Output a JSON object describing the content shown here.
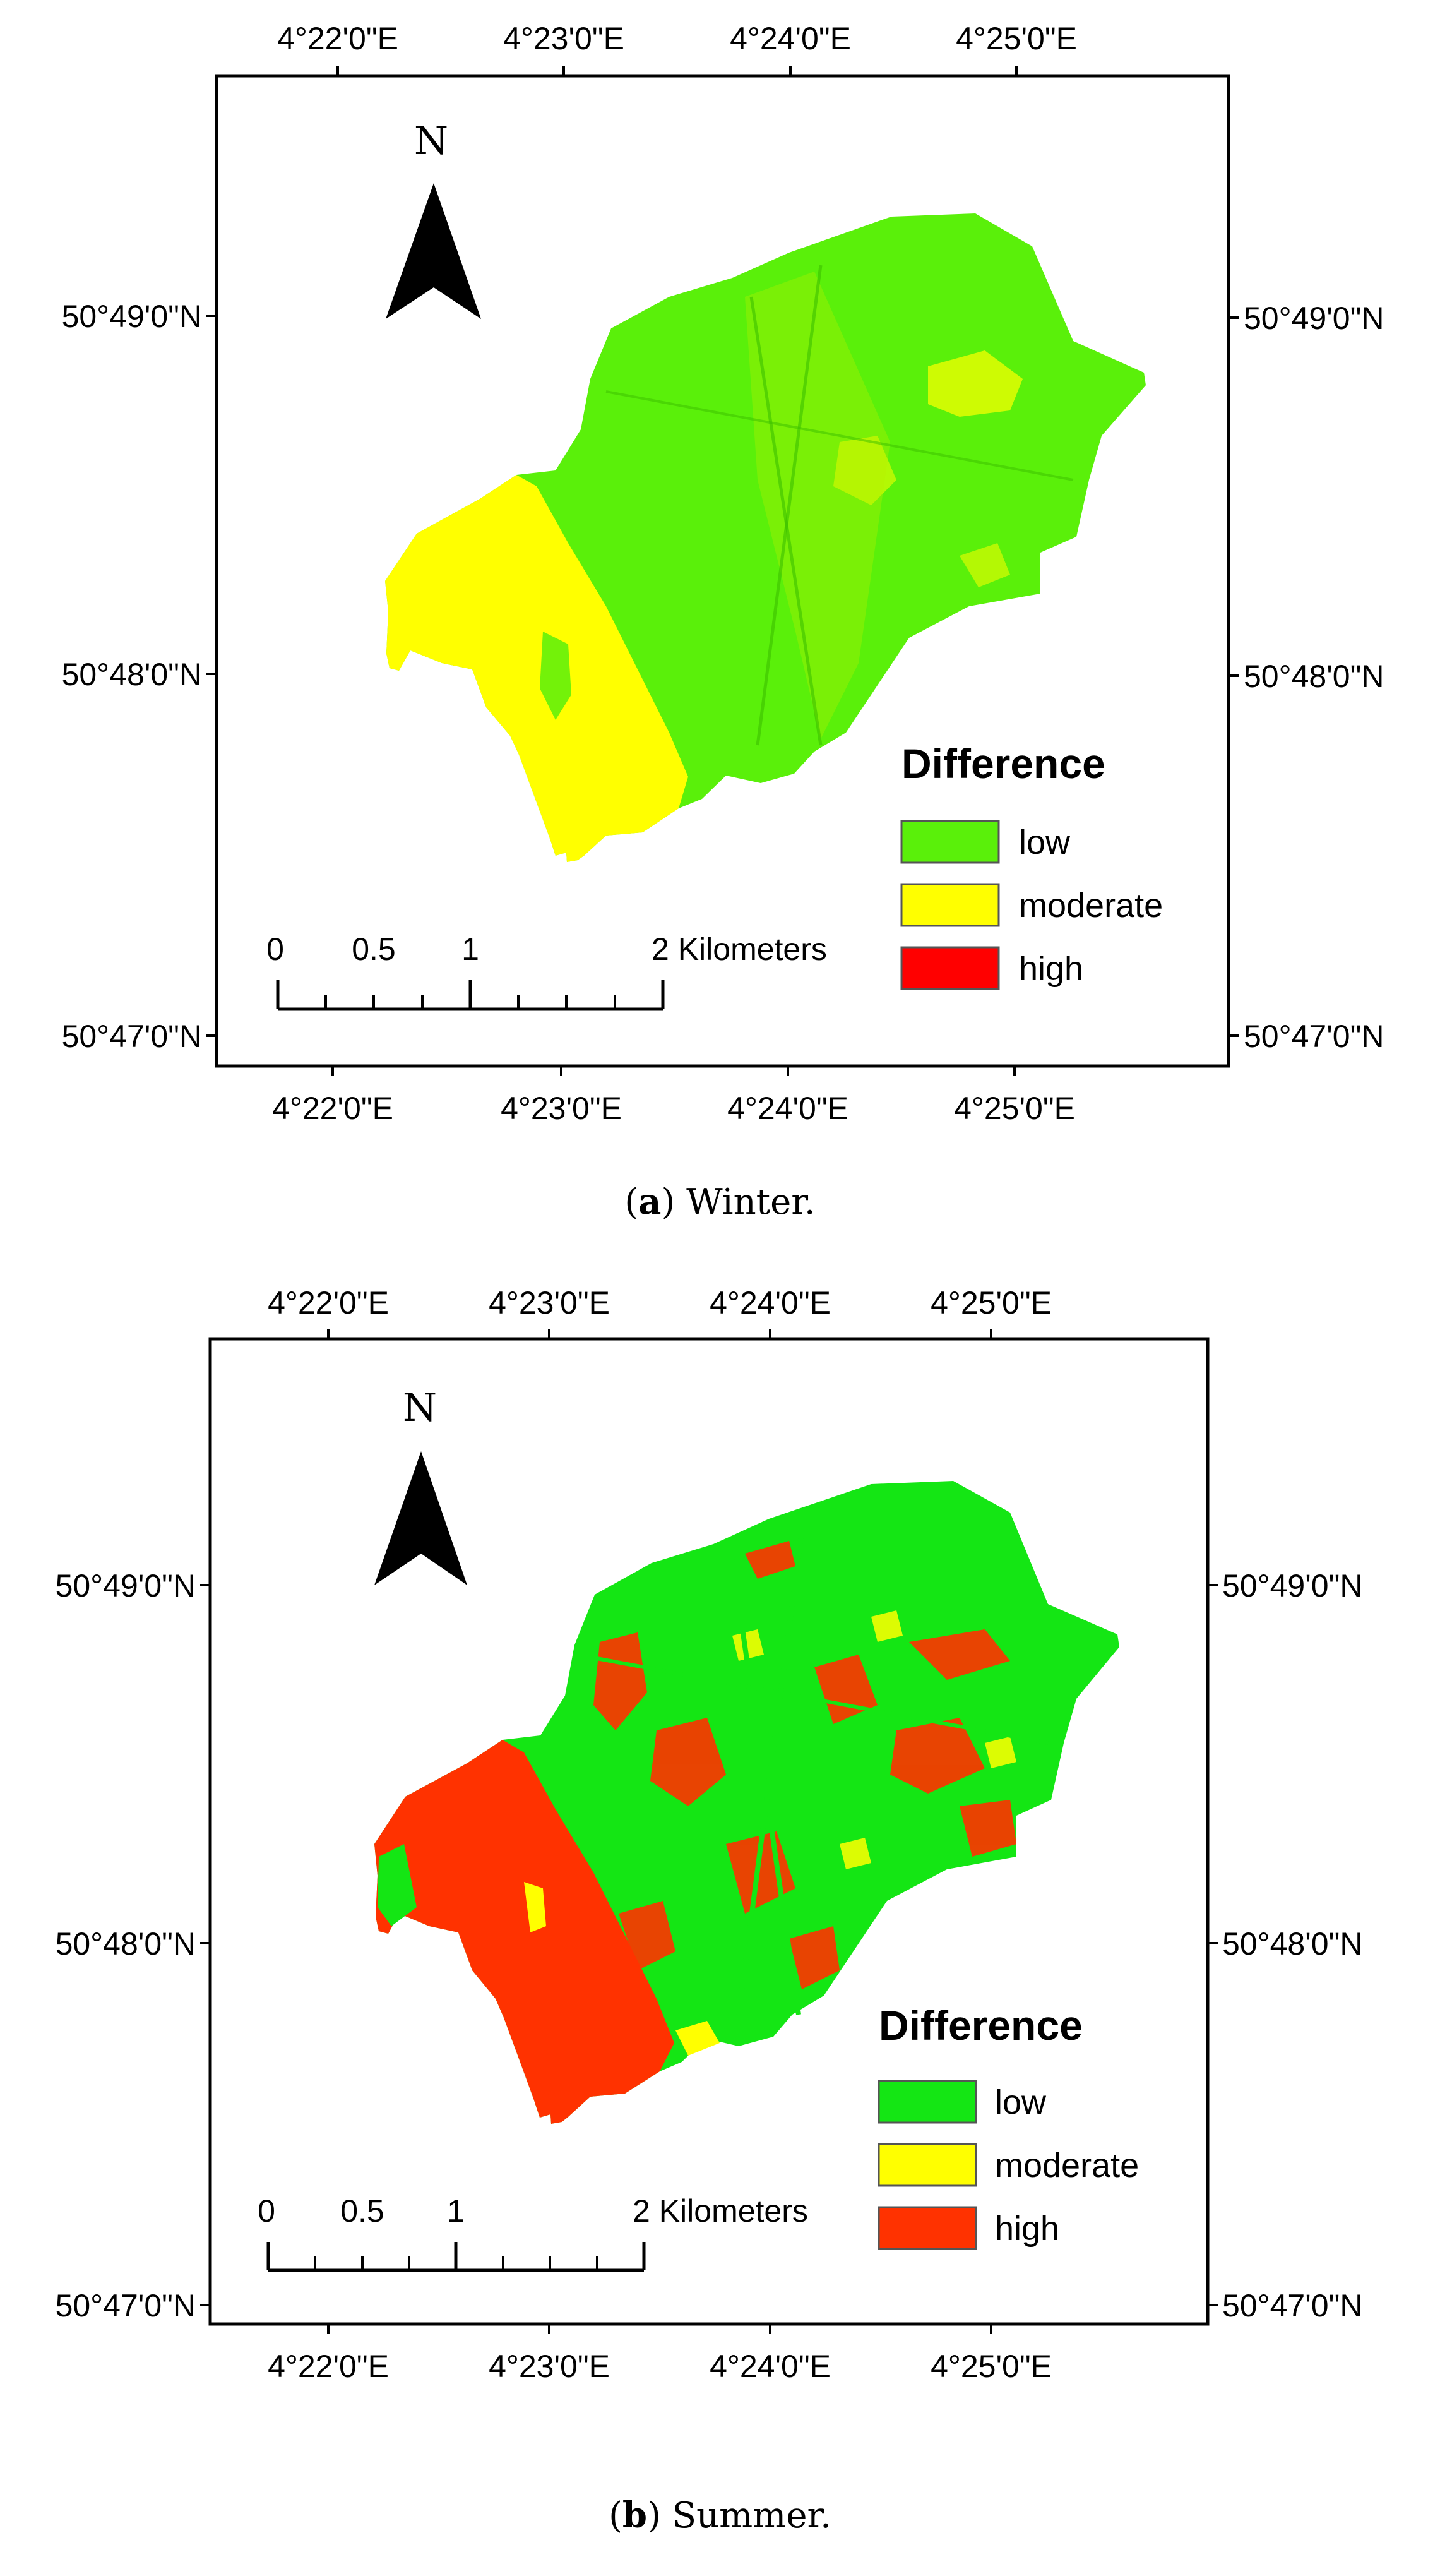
{
  "panels": [
    {
      "id": "a",
      "caption_letter": "a",
      "caption_rest": ") Winter.",
      "top_axis_labels": [
        "4°22'0\"E",
        "4°23'0\"E",
        "4°24'0\"E",
        "4°25'0\"E"
      ],
      "bottom_axis_labels": [
        "4°22'0\"E",
        "4°23'0\"E",
        "4°24'0\"E",
        "4°25'0\"E"
      ],
      "left_axis_labels": [
        "50°49'0\"N",
        "50°48'0\"N",
        "50°47'0\"N"
      ],
      "right_axis_labels": [
        "50°49'0\"N",
        "50°48'0\"N",
        "50°47'0\"N"
      ],
      "north_label": "N",
      "scale_labels": [
        "0",
        "0.5",
        "1",
        "2 Kilometers"
      ],
      "legend": {
        "title": "Difference",
        "items": [
          {
            "label": "low",
            "color": "#5af00a"
          },
          {
            "label": "moderate",
            "color": "#ffff00"
          },
          {
            "label": "high",
            "color": "#ff0000"
          }
        ]
      },
      "map_colors": {
        "base": "#5af00a",
        "secondary": "#ffff00",
        "accent": "#b8f000"
      }
    },
    {
      "id": "b",
      "caption_letter": "b",
      "caption_rest": ") Summer.",
      "top_axis_labels": [
        "4°22'0\"E",
        "4°23'0\"E",
        "4°24'0\"E",
        "4°25'0\"E"
      ],
      "bottom_axis_labels": [
        "4°22'0\"E",
        "4°23'0\"E",
        "4°24'0\"E",
        "4°25'0\"E"
      ],
      "left_axis_labels": [
        "50°49'0\"N",
        "50°48'0\"N",
        "50°47'0\"N"
      ],
      "right_axis_labels": [
        "50°49'0\"N",
        "50°48'0\"N",
        "50°47'0\"N"
      ],
      "north_label": "N",
      "scale_labels": [
        "0",
        "0.5",
        "1",
        "2 Kilometers"
      ],
      "legend": {
        "title": "Difference",
        "items": [
          {
            "label": "low",
            "color": "#14e614"
          },
          {
            "label": "moderate",
            "color": "#ffff00"
          },
          {
            "label": "high",
            "color": "#ff3200"
          }
        ]
      },
      "map_colors": {
        "base": "#14e614",
        "secondary": "#ff3200",
        "accent": "#ffff00"
      }
    }
  ]
}
